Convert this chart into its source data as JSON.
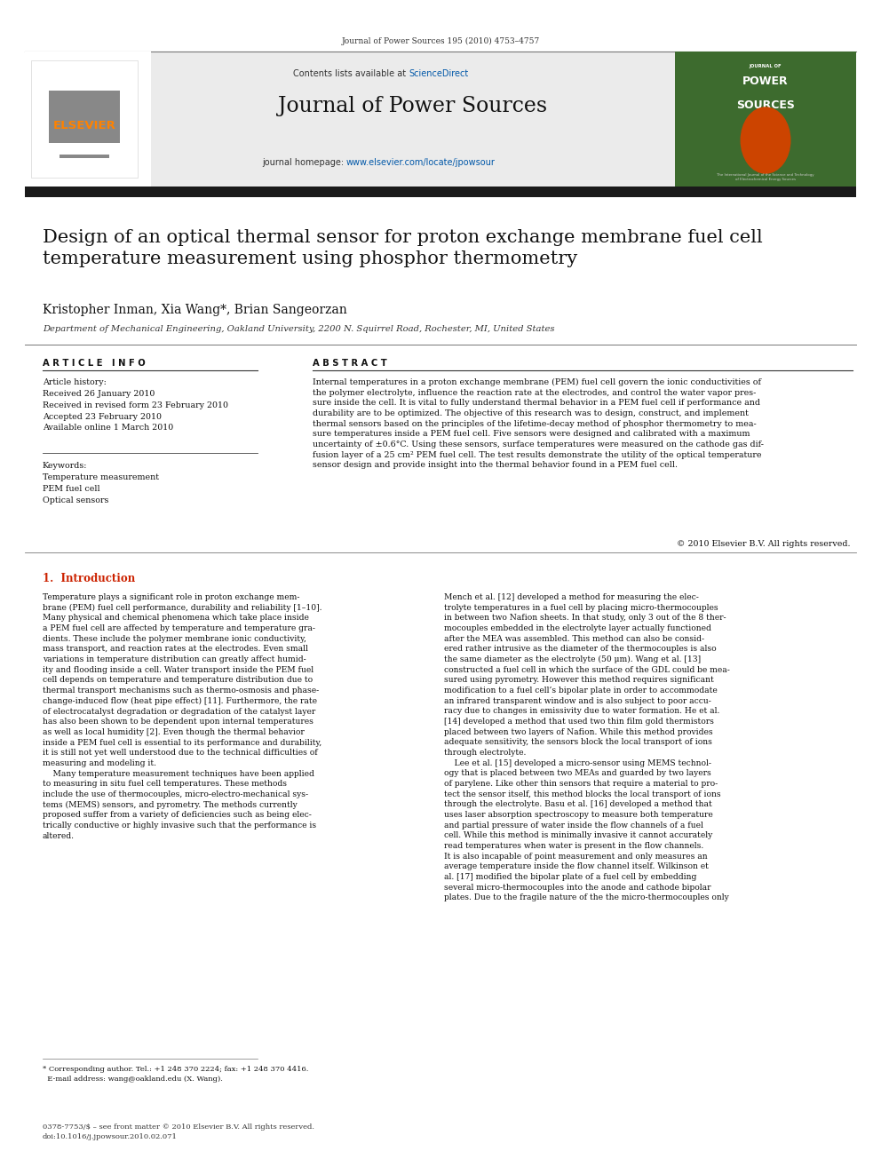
{
  "page_width": 9.92,
  "page_height": 13.23,
  "background_color": "#ffffff",
  "top_journal_ref": "Journal of Power Sources 195 (2010) 4753–4757",
  "header_bg_color": "#e8e8e8",
  "header_text_contents_lists": "Contents lists available at ",
  "header_sciencedirect_text": "ScienceDirect",
  "header_sciencedirect_color": "#0057a8",
  "journal_name": "Journal of Power Sources",
  "journal_homepage_text": "journal homepage: ",
  "journal_homepage_url": "www.elsevier.com/locate/jpowsour",
  "journal_homepage_url_color": "#0057a8",
  "elsevier_color": "#ff8200",
  "dark_bar_color": "#1a1a1a",
  "paper_title": "Design of an optical thermal sensor for proton exchange membrane fuel cell\ntemperature measurement using phosphor thermometry",
  "authors": "Kristopher Inman, Xia Wang*, Brian Sangeorzan",
  "affiliation": "Department of Mechanical Engineering, Oakland University, 2200 N. Squirrel Road, Rochester, MI, United States",
  "article_info_header": "A R T I C L E   I N F O",
  "article_history_label": "Article history:",
  "received1": "Received 26 January 2010",
  "received2": "Received in revised form 23 February 2010",
  "accepted": "Accepted 23 February 2010",
  "available": "Available online 1 March 2010",
  "keywords_label": "Keywords:",
  "keyword1": "Temperature measurement",
  "keyword2": "PEM fuel cell",
  "keyword3": "Optical sensors",
  "abstract_header": "A B S T R A C T",
  "abstract_text": "Internal temperatures in a proton exchange membrane (PEM) fuel cell govern the ionic conductivities of\nthe polymer electrolyte, influence the reaction rate at the electrodes, and control the water vapor pres-\nsure inside the cell. It is vital to fully understand thermal behavior in a PEM fuel cell if performance and\ndurability are to be optimized. The objective of this research was to design, construct, and implement\nthermal sensors based on the principles of the lifetime-decay method of phosphor thermometry to mea-\nsure temperatures inside a PEM fuel cell. Five sensors were designed and calibrated with a maximum\nuncertainty of ±0.6°C. Using these sensors, surface temperatures were measured on the cathode gas dif-\nfusion layer of a 25 cm² PEM fuel cell. The test results demonstrate the utility of the optical temperature\nsensor design and provide insight into the thermal behavior found in a PEM fuel cell.",
  "copyright_text": "© 2010 Elsevier B.V. All rights reserved.",
  "section1_header": "1.  Introduction",
  "intro_col1_text": "Temperature plays a significant role in proton exchange mem-\nbrane (PEM) fuel cell performance, durability and reliability [1–10].\nMany physical and chemical phenomena which take place inside\na PEM fuel cell are affected by temperature and temperature gra-\ndients. These include the polymer membrane ionic conductivity,\nmass transport, and reaction rates at the electrodes. Even small\nvariations in temperature distribution can greatly affect humid-\nity and flooding inside a cell. Water transport inside the PEM fuel\ncell depends on temperature and temperature distribution due to\nthermal transport mechanisms such as thermo-osmosis and phase-\nchange-induced flow (heat pipe effect) [11]. Furthermore, the rate\nof electrocatalyst degradation or degradation of the catalyst layer\nhas also been shown to be dependent upon internal temperatures\nas well as local humidity [2]. Even though the thermal behavior\ninside a PEM fuel cell is essential to its performance and durability,\nit is still not yet well understood due to the technical difficulties of\nmeasuring and modeling it.\n    Many temperature measurement techniques have been applied\nto measuring in situ fuel cell temperatures. These methods\ninclude the use of thermocouples, micro-electro-mechanical sys-\ntems (MEMS) sensors, and pyrometry. The methods currently\nproposed suffer from a variety of deficiencies such as being elec-\ntrically conductive or highly invasive such that the performance is\naltered.",
  "intro_col2_text": "Mench et al. [12] developed a method for measuring the elec-\ntrolyte temperatures in a fuel cell by placing micro-thermocouples\nin between two Nafion sheets. In that study, only 3 out of the 8 ther-\nmocouples embedded in the electrolyte layer actually functioned\nafter the MEA was assembled. This method can also be consid-\nered rather intrusive as the diameter of the thermocouples is also\nthe same diameter as the electrolyte (50 μm). Wang et al. [13]\nconstructed a fuel cell in which the surface of the GDL could be mea-\nsured using pyrometry. However this method requires significant\nmodification to a fuel cell’s bipolar plate in order to accommodate\nan infrared transparent window and is also subject to poor accu-\nracy due to changes in emissivity due to water formation. He et al.\n[14] developed a method that used two thin film gold thermistors\nplaced between two layers of Nafion. While this method provides\nadequate sensitivity, the sensors block the local transport of ions\nthrough electrolyte.\n    Lee et al. [15] developed a micro-sensor using MEMS technol-\nogy that is placed between two MEAs and guarded by two layers\nof parylene. Like other thin sensors that require a material to pro-\ntect the sensor itself, this method blocks the local transport of ions\nthrough the electrolyte. Basu et al. [16] developed a method that\nuses laser absorption spectroscopy to measure both temperature\nand partial pressure of water inside the flow channels of a fuel\ncell. While this method is minimally invasive it cannot accurately\nread temperatures when water is present in the flow channels.\nIt is also incapable of point measurement and only measures an\naverage temperature inside the flow channel itself. Wilkinson et\nal. [17] modified the bipolar plate of a fuel cell by embedding\nseveral micro-thermocouples into the anode and cathode bipolar\nplates. Due to the fragile nature of the the micro-thermocouples only",
  "footnote_text": "* Corresponding author. Tel.: +1 248 370 2224; fax: +1 248 370 4416.\n  E-mail address: wang@oakland.edu (X. Wang).",
  "bottom_bar_text": "0378-7753/$ – see front matter © 2010 Elsevier B.V. All rights reserved.\ndoi:10.1016/j.jpowsour.2010.02.071"
}
